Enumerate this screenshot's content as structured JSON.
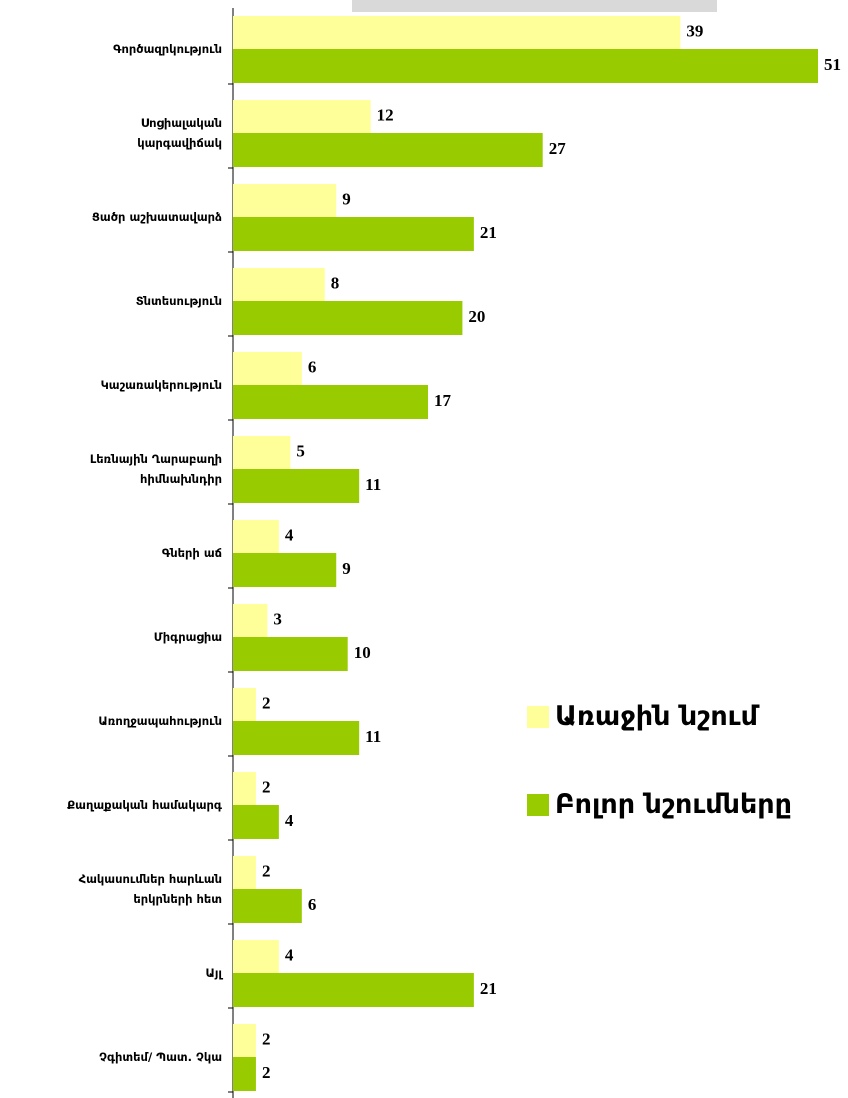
{
  "chart_data": {
    "type": "barh",
    "categories": [
      "Գործազրկություն",
      "Սոցիալական\nկարգավիճակ",
      "Ցածր աշխատավարձ",
      "Տնտեսություն",
      "Կաշառակերություն",
      "Լեռնային Ղարաբաղի\nհիմնախնդիր",
      "Գների աճ",
      "Միգրացիա",
      "Առողջապահություն",
      "Քաղաքական համակարգ",
      "Հակասումներ հարևան\nերկրների հետ",
      "Այլ",
      "Չգիտեմ/ Պատ. Չկա"
    ],
    "series": [
      {
        "name": "Առաջին նշում",
        "color": "#ffff99",
        "values": [
          39,
          12,
          9,
          8,
          6,
          5,
          4,
          3,
          2,
          2,
          2,
          4,
          2
        ]
      },
      {
        "name": "Բոլոր նշումները",
        "color": "#99cc00",
        "values": [
          51,
          27,
          21,
          20,
          17,
          11,
          9,
          10,
          11,
          4,
          6,
          21,
          2
        ]
      }
    ],
    "xlim": [
      0,
      51
    ]
  }
}
